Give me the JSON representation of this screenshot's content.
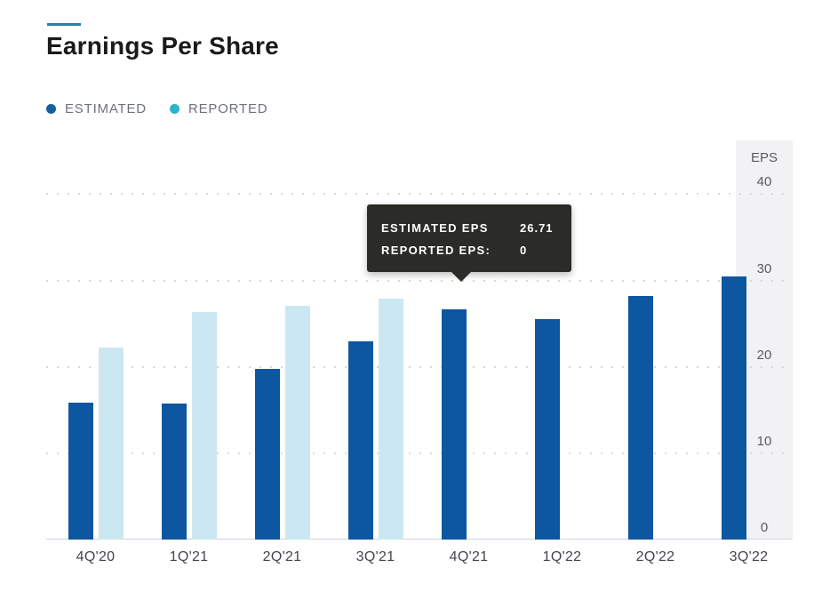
{
  "header": {
    "title": "Earnings Per Share"
  },
  "legend": {
    "estimated_label": "ESTIMATED",
    "reported_label": "REPORTED"
  },
  "tooltip": {
    "rows": [
      {
        "label": "ESTIMATED EPS",
        "value": "26.71"
      },
      {
        "label": "REPORTED EPS:",
        "value": "0"
      }
    ]
  },
  "chart_data": {
    "type": "bar",
    "title": "Earnings Per Share",
    "categories": [
      "4Q'20",
      "1Q'21",
      "2Q'21",
      "3Q'21",
      "4Q'21",
      "1Q'22",
      "2Q'22",
      "3Q'22"
    ],
    "series": [
      {
        "name": "ESTIMATED",
        "values": [
          15.9,
          15.8,
          19.8,
          23.0,
          26.71,
          25.5,
          28.2,
          30.5
        ]
      },
      {
        "name": "REPORTED",
        "values": [
          22.2,
          26.3,
          27.1,
          27.9,
          0,
          0,
          0,
          0
        ]
      }
    ],
    "ylabel": "EPS",
    "xlabel": "",
    "yticks": [
      0,
      10,
      20,
      30,
      40
    ],
    "ylim": [
      0,
      46
    ],
    "grid": "dotted horizontal",
    "legend_position": "top-left",
    "highlighted_category": "4Q'21",
    "tooltip_values": {
      "estimated_eps": 26.71,
      "reported_eps": 0
    }
  },
  "colors": {
    "estimated_bar": "#0d57a0",
    "reported_bar": "#cbe8f2",
    "estimated_legend_dot": "#15609d",
    "reported_legend_dot": "#2ab4c7",
    "tooltip_bg": "#2b2b28",
    "tooltip_text": "#ffffff",
    "accent_dash": "#2a81a8",
    "panel_bg": "#f2f2f4",
    "gridline": "#d8d8d8",
    "axis_line": "#ccd6df",
    "title_text": "#1a1a1c",
    "x_label_text": "#43464d",
    "y_label_text": "#595a60",
    "legend_text": "#6e717c"
  }
}
